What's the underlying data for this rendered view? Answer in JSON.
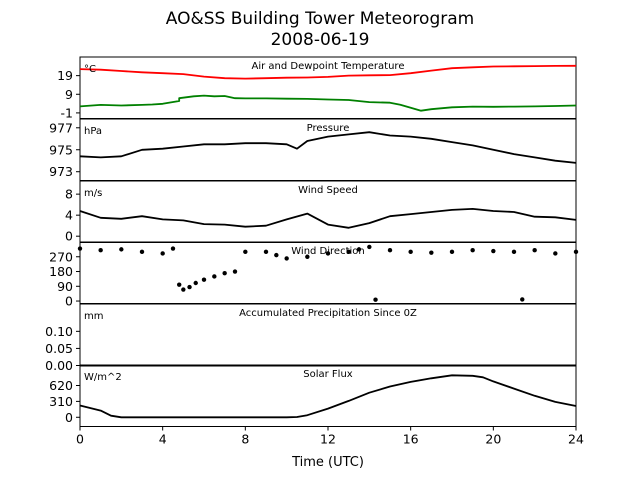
{
  "chart_data": {
    "type": "line",
    "title": "AO&SS Building Tower Meteorogram",
    "subtitle": "2008-06-19",
    "xlabel": "Time (UTC)",
    "xlim": [
      0,
      24
    ],
    "xticks": [
      0,
      4,
      8,
      12,
      16,
      20,
      24
    ],
    "grid": false,
    "panels": [
      {
        "title": "Air and Dewpoint Temperature",
        "unit": "°C",
        "ylim": [
          -4,
          29
        ],
        "yticks": [
          -1,
          9,
          19
        ],
        "series": [
          {
            "color": "#ff0000",
            "style": "line",
            "x": [
              0,
              1,
              2,
              3,
              4,
              5,
              6,
              7,
              8,
              9,
              10,
              11,
              12,
              13,
              14,
              15,
              16,
              17,
              18,
              19,
              20,
              21,
              22,
              23,
              24
            ],
            "y": [
              22.5,
              22.2,
              21.5,
              20.8,
              20.3,
              19.8,
              18.5,
              17.6,
              17.4,
              17.6,
              17.9,
              18.0,
              18.3,
              19.0,
              19.2,
              19.3,
              20.3,
              21.7,
              23.0,
              23.5,
              23.9,
              24.0,
              24.1,
              24.2,
              24.3
            ]
          },
          {
            "color": "#008000",
            "style": "line",
            "x": [
              0,
              1,
              2,
              3,
              3.5,
              4,
              4.8,
              4.8,
              5.5,
              6,
              6.5,
              7,
              7.5,
              8,
              9,
              10,
              11,
              12,
              13,
              14,
              15,
              15.5,
              16,
              16.5,
              17,
              18,
              19,
              20,
              21,
              22,
              23,
              24
            ],
            "y": [
              2.5,
              3.3,
              3.0,
              3.3,
              3.5,
              3.9,
              5.4,
              6.9,
              7.9,
              8.3,
              7.9,
              8.1,
              6.9,
              6.8,
              6.8,
              6.6,
              6.5,
              6.2,
              5.9,
              4.8,
              4.5,
              3.4,
              1.8,
              0.2,
              1.0,
              2.0,
              2.4,
              2.3,
              2.4,
              2.5,
              2.7,
              3.0
            ]
          }
        ]
      },
      {
        "title": "Pressure",
        "unit": "hPa",
        "ylim": [
          972.2,
          977.8
        ],
        "yticks": [
          973,
          975,
          977
        ],
        "series": [
          {
            "color": "#000000",
            "style": "line",
            "x": [
              0,
              1,
              2,
              3,
              4,
              5,
              6,
              7,
              8,
              9,
              10,
              10.5,
              11,
              12,
              13,
              14,
              15,
              16,
              17,
              18,
              19,
              20,
              21,
              22,
              23,
              24
            ],
            "y": [
              974.4,
              974.3,
              974.4,
              975.0,
              975.1,
              975.3,
              975.5,
              975.5,
              975.6,
              975.6,
              975.5,
              975.1,
              975.8,
              976.2,
              976.4,
              976.6,
              976.3,
              976.2,
              976.0,
              975.7,
              975.4,
              975.0,
              974.6,
              974.3,
              974.0,
              973.8
            ]
          }
        ]
      },
      {
        "title": "Wind Speed",
        "unit": "m/s",
        "ylim": [
          -1.2,
          10.5
        ],
        "yticks": [
          0,
          4,
          8
        ],
        "series": [
          {
            "color": "#000000",
            "style": "line",
            "x": [
              0,
              1,
              2,
              3,
              4,
              5,
              6,
              7,
              8,
              9,
              10,
              11,
              12,
              13,
              14,
              15,
              16,
              17,
              18,
              19,
              20,
              21,
              22,
              23,
              24
            ],
            "y": [
              4.8,
              3.5,
              3.3,
              3.8,
              3.2,
              3.0,
              2.3,
              2.2,
              1.8,
              2.0,
              3.2,
              4.3,
              2.2,
              1.6,
              2.5,
              3.8,
              4.2,
              4.6,
              5.0,
              5.2,
              4.8,
              4.6,
              3.7,
              3.6,
              3.1
            ]
          }
        ]
      },
      {
        "title": "Wind Direction",
        "unit": "",
        "ylim": [
          -15,
          360
        ],
        "yticks": [
          0,
          90,
          180,
          270
        ],
        "series": [
          {
            "color": "#000000",
            "style": "dots",
            "x": [
              0,
              1,
              2,
              3,
              4,
              4.5,
              4.8,
              5.0,
              5.3,
              5.6,
              6,
              6.5,
              7,
              7.5,
              8,
              9,
              9.5,
              10,
              11,
              12,
              13,
              13.5,
              14,
              15,
              16,
              17,
              18,
              19,
              20,
              21,
              22,
              23,
              24,
              14.3,
              21.4
            ],
            "y": [
              320,
              310,
              315,
              300,
              290,
              320,
              100,
              70,
              85,
              110,
              130,
              150,
              170,
              180,
              300,
              300,
              280,
              260,
              270,
              290,
              300,
              315,
              330,
              310,
              300,
              295,
              300,
              310,
              305,
              300,
              310,
              290,
              300,
              8,
              10
            ]
          }
        ]
      },
      {
        "title": "Accumulated Precipitation Since 0Z",
        "unit": "mm",
        "ylim": [
          0,
          0.18
        ],
        "yticks": [
          0.0,
          0.05,
          0.1
        ],
        "series": [
          {
            "color": "#000000",
            "style": "line",
            "x": [
              0,
              24
            ],
            "y": [
              0,
              0
            ]
          }
        ]
      },
      {
        "title": "Solar Flux",
        "unit": "W/m^2",
        "ylim": [
          -180,
          1020
        ],
        "yticks": [
          0,
          310,
          620
        ],
        "series": [
          {
            "color": "#000000",
            "style": "line",
            "x": [
              0,
              1,
              1.5,
              2,
              3,
              4,
              5,
              6,
              7,
              8,
              9,
              10,
              10.5,
              11,
              12,
              13,
              14,
              15,
              16,
              17,
              18,
              19,
              19.5,
              20,
              21,
              22,
              23,
              24
            ],
            "y": [
              230,
              130,
              30,
              0,
              0,
              0,
              0,
              0,
              0,
              0,
              0,
              0,
              5,
              40,
              170,
              320,
              480,
              600,
              690,
              760,
              820,
              810,
              780,
              700,
              560,
              420,
              300,
              220
            ]
          }
        ]
      }
    ]
  }
}
